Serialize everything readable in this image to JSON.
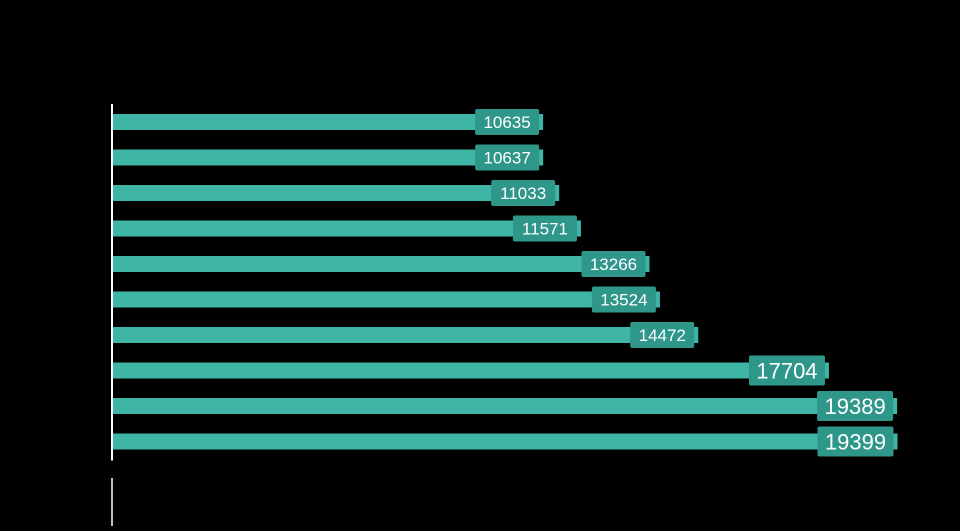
{
  "chart_data": {
    "type": "bar",
    "orientation": "horizontal",
    "title": "",
    "xlabel": "",
    "ylabel": "",
    "values": [
      10635,
      10637,
      11033,
      11571,
      13266,
      13524,
      14472,
      17704,
      19389,
      19399
    ],
    "xlim": [
      0,
      20000
    ],
    "grid": false,
    "legend": "none",
    "data_labels": true
  },
  "colors": {
    "background": "#000000",
    "bar": "#3fb5a6",
    "label_box": "#2f978a",
    "axis": "#ffffff",
    "label_text": "#ffffff"
  }
}
